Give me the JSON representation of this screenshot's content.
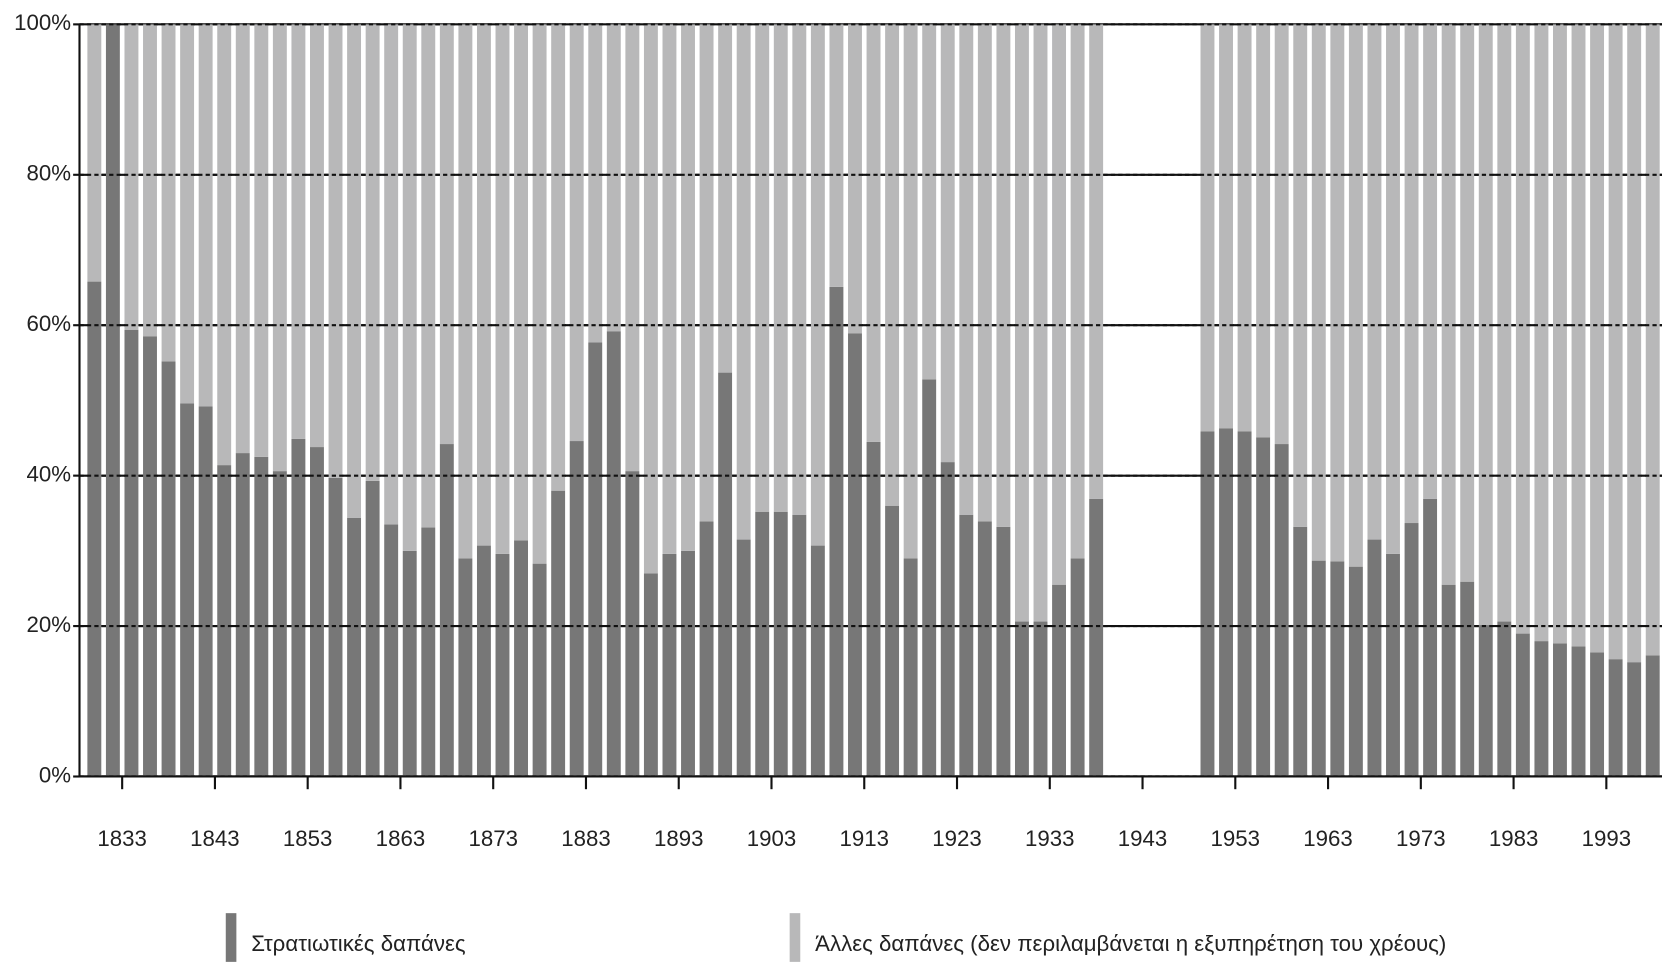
{
  "chart_data": {
    "type": "stacked_bar",
    "x": [
      1830,
      1832,
      1834,
      1836,
      1838,
      1840,
      1842,
      1844,
      1846,
      1848,
      1850,
      1852,
      1854,
      1856,
      1858,
      1860,
      1862,
      1864,
      1866,
      1868,
      1870,
      1872,
      1874,
      1876,
      1878,
      1880,
      1882,
      1884,
      1886,
      1888,
      1890,
      1892,
      1894,
      1896,
      1898,
      1900,
      1902,
      1904,
      1906,
      1908,
      1910,
      1912,
      1914,
      1916,
      1918,
      1920,
      1922,
      1924,
      1926,
      1928,
      1930,
      1932,
      1934,
      1936,
      1938,
      1940,
      1942,
      1944,
      1946,
      1948,
      1950,
      1952,
      1954,
      1956,
      1958,
      1960,
      1962,
      1964,
      1966,
      1968,
      1970,
      1972,
      1974,
      1976,
      1978,
      1980,
      1982,
      1984,
      1986,
      1988,
      1990,
      1992,
      1994,
      1996,
      1998
    ],
    "series": [
      {
        "name": "Στρατιωτικές δαπάνες",
        "color": "#777777",
        "values": [
          65.8,
          100,
          59.4,
          58.5,
          55.2,
          49.6,
          49.2,
          41.4,
          43,
          42.5,
          40.6,
          44.9,
          43.8,
          39.7,
          34.4,
          39.3,
          33.5,
          30,
          33.1,
          44.2,
          29,
          30.7,
          29.6,
          31.4,
          28.3,
          38,
          44.6,
          57.7,
          59.2,
          40.6,
          27,
          29.6,
          30,
          33.9,
          53.7,
          31.5,
          35.2,
          35.2,
          34.8,
          30.7,
          65.1,
          58.9,
          44.5,
          36,
          29,
          52.8,
          41.8,
          34.8,
          33.9,
          33.2,
          20.6,
          20.6,
          25.5,
          29,
          36.9,
          null,
          null,
          null,
          null,
          null,
          45.9,
          46.3,
          45.9,
          45.1,
          44.2,
          33.2,
          28.7,
          28.6,
          27.9,
          31.5,
          29.6,
          33.7,
          36.9,
          25.5,
          25.9,
          20.1,
          20.6,
          19,
          18,
          17.7,
          17.3,
          16.5,
          15.6,
          15.2,
          16.1
        ]
      },
      {
        "name": "Άλλες δαπάνες (δεν περιλαμβάνεται η εξυπηρέτηση του χρέους)",
        "color": "#b8b8b9",
        "values": [
          34.2,
          0,
          40.6,
          41.5,
          44.8,
          50.4,
          50.8,
          58.6,
          57,
          57.5,
          59.4,
          55.1,
          56.2,
          60.3,
          65.6,
          60.7,
          66.5,
          70,
          66.9,
          55.8,
          71,
          69.3,
          70.4,
          68.6,
          71.7,
          62,
          55.4,
          42.3,
          40.8,
          59.4,
          73,
          70.4,
          70,
          66.1,
          46.3,
          68.5,
          64.8,
          64.8,
          65.2,
          69.3,
          34.9,
          41.1,
          55.5,
          64,
          71,
          47.2,
          58.2,
          65.2,
          66.1,
          66.8,
          79.4,
          79.4,
          74.5,
          71,
          63.1,
          null,
          null,
          null,
          null,
          null,
          54.1,
          53.7,
          54.1,
          54.9,
          55.8,
          66.8,
          71.3,
          71.4,
          72.1,
          68.5,
          70.4,
          66.3,
          63.1,
          74.5,
          74.1,
          79.9,
          79.4,
          81,
          82,
          82.3,
          82.7,
          83.5,
          84.4,
          84.8,
          83.9
        ]
      }
    ],
    "xlim": [
      1828.4,
      1999
    ],
    "xticks": [
      1833,
      1843,
      1853,
      1863,
      1873,
      1883,
      1893,
      1903,
      1913,
      1923,
      1933,
      1943,
      1953,
      1963,
      1973,
      1983,
      1993
    ],
    "ylim": [
      0,
      100
    ],
    "yticks": [
      {
        "value": 0,
        "label": "0%"
      },
      {
        "value": 20,
        "label": "20%"
      },
      {
        "value": 40,
        "label": "40%"
      },
      {
        "value": 60,
        "label": "60%"
      },
      {
        "value": 80,
        "label": "80%"
      },
      {
        "value": 100,
        "label": "100%"
      }
    ],
    "grid": true
  }
}
